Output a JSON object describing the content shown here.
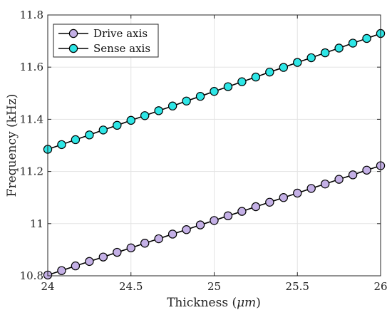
{
  "chart_data": {
    "type": "line",
    "xlabel_prefix": "Thickness (",
    "xlabel_unit": "μm",
    "xlabel_suffix": ")",
    "ylabel": "Frequency (kHz)",
    "xlim": [
      24,
      26
    ],
    "ylim": [
      10.8,
      11.8
    ],
    "xticks": [
      "24",
      "24.5",
      "25",
      "25.5",
      "26"
    ],
    "xtick_values": [
      24,
      24.5,
      25,
      25.5,
      26
    ],
    "yticks": [
      "10.8",
      "11",
      "11.2",
      "11.4",
      "11.6",
      "11.8"
    ],
    "ytick_values": [
      10.8,
      11.0,
      11.2,
      11.4,
      11.6,
      11.8
    ],
    "grid": true,
    "legend_position": "top-left",
    "x": [
      24.0,
      24.0833,
      24.1667,
      24.25,
      24.3333,
      24.4167,
      24.5,
      24.5833,
      24.6667,
      24.75,
      24.8333,
      24.9167,
      25.0,
      25.0833,
      25.1667,
      25.25,
      25.3333,
      25.4167,
      25.5,
      25.5833,
      25.6667,
      25.75,
      25.8333,
      25.9167,
      26.0
    ],
    "series": [
      {
        "name": "Drive axis",
        "color": "#c4b0e6",
        "values": [
          10.803,
          10.82,
          10.838,
          10.855,
          10.872,
          10.89,
          10.907,
          10.925,
          10.942,
          10.96,
          10.977,
          10.995,
          11.012,
          11.03,
          11.047,
          11.065,
          11.082,
          11.1,
          11.117,
          11.135,
          11.152,
          11.17,
          11.187,
          11.205,
          11.222
        ]
      },
      {
        "name": "Sense axis",
        "color": "#2ee6e6",
        "values": [
          11.285,
          11.303,
          11.322,
          11.34,
          11.359,
          11.377,
          11.396,
          11.414,
          11.433,
          11.451,
          11.47,
          11.488,
          11.507,
          11.525,
          11.544,
          11.562,
          11.581,
          11.599,
          11.618,
          11.636,
          11.655,
          11.673,
          11.692,
          11.71,
          11.729
        ]
      }
    ]
  }
}
